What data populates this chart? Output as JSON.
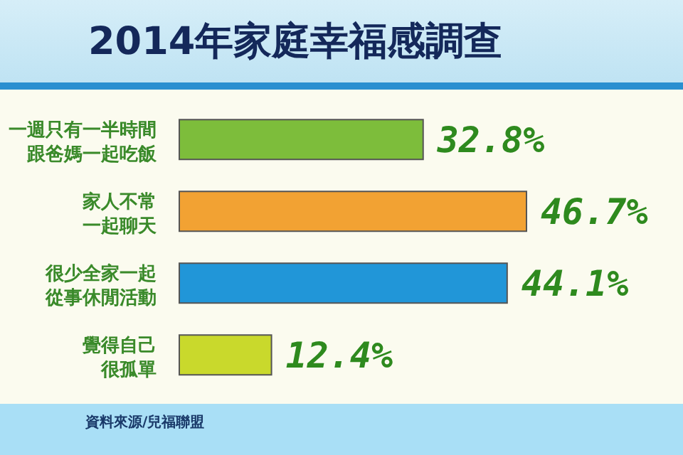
{
  "chart_data": {
    "type": "bar",
    "orientation": "horizontal",
    "title": "2014年家庭幸福感調查",
    "categories": [
      "一週只有一半時間跟爸媽一起吃飯",
      "家人不常一起聊天",
      "很少全家一起從事休閒活動",
      "覺得自己很孤單"
    ],
    "values": [
      32.8,
      46.7,
      44.1,
      12.4
    ],
    "colors": [
      "#7dbd3b",
      "#f2a233",
      "#2196d8",
      "#c9d92c"
    ],
    "value_labels": [
      "32.8%",
      "46.7%",
      "44.1%",
      "12.4%"
    ],
    "annotations": [
      "資料來源/兒福聯盟"
    ]
  }
}
